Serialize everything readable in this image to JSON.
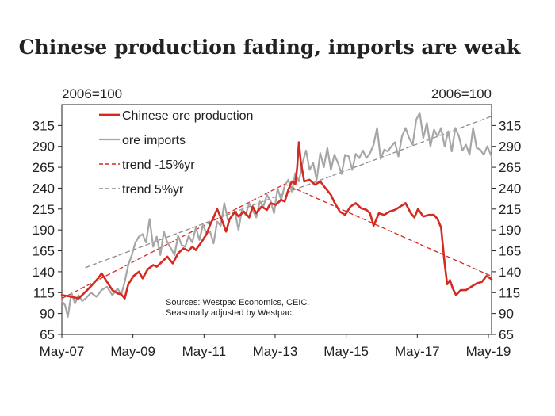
{
  "chart_data": {
    "type": "line",
    "title": "Chinese production fading, imports are weak",
    "left_axis_unit": "2006=100",
    "right_axis_unit": "2006=100",
    "ylim": [
      65,
      340
    ],
    "y_ticks": [
      65,
      90,
      115,
      140,
      165,
      190,
      215,
      240,
      265,
      290,
      315
    ],
    "xlim": [
      2007.33,
      2019.42
    ],
    "x_ticks": [
      {
        "label": "May-07",
        "value": 2007.33
      },
      {
        "label": "May-09",
        "value": 2009.33
      },
      {
        "label": "May-11",
        "value": 2011.33
      },
      {
        "label": "May-13",
        "value": 2013.33
      },
      {
        "label": "May-15",
        "value": 2015.33
      },
      {
        "label": "May-17",
        "value": 2017.33
      },
      {
        "label": "May-19",
        "value": 2019.33
      }
    ],
    "series": [
      {
        "name": "Chinese ore production",
        "color": "#d42a20",
        "style": "solid",
        "points": [
          [
            2007.33,
            112
          ],
          [
            2007.6,
            110
          ],
          [
            2007.8,
            108
          ],
          [
            2008.0,
            116
          ],
          [
            2008.2,
            125
          ],
          [
            2008.35,
            132
          ],
          [
            2008.45,
            138
          ],
          [
            2008.6,
            128
          ],
          [
            2008.75,
            118
          ],
          [
            2008.9,
            114
          ],
          [
            2009.0,
            113
          ],
          [
            2009.1,
            108
          ],
          [
            2009.2,
            125
          ],
          [
            2009.35,
            135
          ],
          [
            2009.5,
            140
          ],
          [
            2009.6,
            132
          ],
          [
            2009.75,
            143
          ],
          [
            2009.9,
            148
          ],
          [
            2010.0,
            146
          ],
          [
            2010.15,
            152
          ],
          [
            2010.3,
            158
          ],
          [
            2010.45,
            150
          ],
          [
            2010.6,
            162
          ],
          [
            2010.75,
            168
          ],
          [
            2010.9,
            165
          ],
          [
            2011.0,
            170
          ],
          [
            2011.1,
            166
          ],
          [
            2011.25,
            175
          ],
          [
            2011.4,
            185
          ],
          [
            2011.5,
            196
          ],
          [
            2011.6,
            205
          ],
          [
            2011.7,
            215
          ],
          [
            2011.85,
            200
          ],
          [
            2011.95,
            188
          ],
          [
            2012.05,
            203
          ],
          [
            2012.2,
            212
          ],
          [
            2012.3,
            206
          ],
          [
            2012.45,
            212
          ],
          [
            2012.6,
            205
          ],
          [
            2012.7,
            218
          ],
          [
            2012.8,
            210
          ],
          [
            2012.95,
            218
          ],
          [
            2013.1,
            214
          ],
          [
            2013.2,
            222
          ],
          [
            2013.35,
            220
          ],
          [
            2013.5,
            226
          ],
          [
            2013.6,
            224
          ],
          [
            2013.7,
            238
          ],
          [
            2013.8,
            248
          ],
          [
            2013.9,
            245
          ],
          [
            2013.95,
            265
          ],
          [
            2014.0,
            295
          ],
          [
            2014.05,
            272
          ],
          [
            2014.15,
            248
          ],
          [
            2014.3,
            250
          ],
          [
            2014.45,
            244
          ],
          [
            2014.6,
            248
          ],
          [
            2014.75,
            240
          ],
          [
            2014.9,
            232
          ],
          [
            2015.0,
            223
          ],
          [
            2015.15,
            212
          ],
          [
            2015.3,
            208
          ],
          [
            2015.45,
            218
          ],
          [
            2015.6,
            222
          ],
          [
            2015.75,
            216
          ],
          [
            2015.9,
            214
          ],
          [
            2016.0,
            210
          ],
          [
            2016.1,
            195
          ],
          [
            2016.25,
            210
          ],
          [
            2016.4,
            208
          ],
          [
            2016.55,
            212
          ],
          [
            2016.7,
            214
          ],
          [
            2016.85,
            218
          ],
          [
            2017.0,
            222
          ],
          [
            2017.15,
            210
          ],
          [
            2017.25,
            205
          ],
          [
            2017.35,
            215
          ],
          [
            2017.5,
            206
          ],
          [
            2017.65,
            208
          ],
          [
            2017.8,
            208
          ],
          [
            2017.9,
            203
          ],
          [
            2018.0,
            193
          ],
          [
            2018.1,
            150
          ],
          [
            2018.17,
            125
          ],
          [
            2018.25,
            130
          ],
          [
            2018.33,
            120
          ],
          [
            2018.42,
            112
          ],
          [
            2018.55,
            118
          ],
          [
            2018.7,
            118
          ],
          [
            2018.85,
            122
          ],
          [
            2019.0,
            126
          ],
          [
            2019.15,
            128
          ],
          [
            2019.28,
            135
          ],
          [
            2019.42,
            131
          ]
        ]
      },
      {
        "name": "ore imports",
        "color": "#a6a6a6",
        "style": "solid",
        "points": [
          [
            2007.33,
            105
          ],
          [
            2007.42,
            100
          ],
          [
            2007.5,
            86
          ],
          [
            2007.6,
            115
          ],
          [
            2007.7,
            102
          ],
          [
            2007.8,
            112
          ],
          [
            2007.9,
            105
          ],
          [
            2008.0,
            108
          ],
          [
            2008.15,
            115
          ],
          [
            2008.3,
            110
          ],
          [
            2008.45,
            118
          ],
          [
            2008.6,
            122
          ],
          [
            2008.75,
            112
          ],
          [
            2008.9,
            120
          ],
          [
            2009.0,
            112
          ],
          [
            2009.1,
            128
          ],
          [
            2009.2,
            148
          ],
          [
            2009.3,
            160
          ],
          [
            2009.4,
            175
          ],
          [
            2009.5,
            182
          ],
          [
            2009.6,
            185
          ],
          [
            2009.7,
            175
          ],
          [
            2009.8,
            203
          ],
          [
            2009.9,
            170
          ],
          [
            2010.0,
            182
          ],
          [
            2010.1,
            160
          ],
          [
            2010.2,
            188
          ],
          [
            2010.3,
            175
          ],
          [
            2010.4,
            168
          ],
          [
            2010.5,
            160
          ],
          [
            2010.6,
            183
          ],
          [
            2010.7,
            172
          ],
          [
            2010.8,
            170
          ],
          [
            2010.9,
            183
          ],
          [
            2011.0,
            175
          ],
          [
            2011.1,
            193
          ],
          [
            2011.2,
            178
          ],
          [
            2011.3,
            196
          ],
          [
            2011.4,
            186
          ],
          [
            2011.5,
            188
          ],
          [
            2011.6,
            174
          ],
          [
            2011.7,
            200
          ],
          [
            2011.8,
            195
          ],
          [
            2011.9,
            222
          ],
          [
            2012.0,
            202
          ],
          [
            2012.1,
            205
          ],
          [
            2012.2,
            212
          ],
          [
            2012.3,
            190
          ],
          [
            2012.4,
            215
          ],
          [
            2012.5,
            208
          ],
          [
            2012.6,
            222
          ],
          [
            2012.7,
            214
          ],
          [
            2012.8,
            205
          ],
          [
            2012.9,
            224
          ],
          [
            2013.0,
            218
          ],
          [
            2013.1,
            232
          ],
          [
            2013.2,
            225
          ],
          [
            2013.3,
            210
          ],
          [
            2013.4,
            240
          ],
          [
            2013.5,
            226
          ],
          [
            2013.6,
            243
          ],
          [
            2013.7,
            250
          ],
          [
            2013.8,
            236
          ],
          [
            2013.9,
            258
          ],
          [
            2014.0,
            248
          ],
          [
            2014.1,
            270
          ],
          [
            2014.2,
            285
          ],
          [
            2014.3,
            262
          ],
          [
            2014.4,
            270
          ],
          [
            2014.5,
            250
          ],
          [
            2014.6,
            282
          ],
          [
            2014.7,
            265
          ],
          [
            2014.8,
            288
          ],
          [
            2014.9,
            262
          ],
          [
            2015.0,
            280
          ],
          [
            2015.1,
            270
          ],
          [
            2015.2,
            257
          ],
          [
            2015.3,
            280
          ],
          [
            2015.4,
            278
          ],
          [
            2015.5,
            262
          ],
          [
            2015.6,
            281
          ],
          [
            2015.7,
            276
          ],
          [
            2015.8,
            285
          ],
          [
            2015.9,
            276
          ],
          [
            2016.0,
            282
          ],
          [
            2016.1,
            292
          ],
          [
            2016.2,
            312
          ],
          [
            2016.3,
            275
          ],
          [
            2016.4,
            286
          ],
          [
            2016.5,
            284
          ],
          [
            2016.6,
            290
          ],
          [
            2016.7,
            295
          ],
          [
            2016.8,
            278
          ],
          [
            2016.9,
            302
          ],
          [
            2017.0,
            312
          ],
          [
            2017.1,
            300
          ],
          [
            2017.2,
            292
          ],
          [
            2017.3,
            322
          ],
          [
            2017.4,
            330
          ],
          [
            2017.5,
            300
          ],
          [
            2017.6,
            318
          ],
          [
            2017.7,
            290
          ],
          [
            2017.8,
            310
          ],
          [
            2017.9,
            302
          ],
          [
            2018.0,
            312
          ],
          [
            2018.1,
            290
          ],
          [
            2018.2,
            308
          ],
          [
            2018.3,
            284
          ],
          [
            2018.4,
            312
          ],
          [
            2018.5,
            302
          ],
          [
            2018.6,
            285
          ],
          [
            2018.7,
            292
          ],
          [
            2018.8,
            280
          ],
          [
            2018.9,
            312
          ],
          [
            2019.0,
            288
          ],
          [
            2019.1,
            286
          ],
          [
            2019.2,
            280
          ],
          [
            2019.3,
            290
          ],
          [
            2019.42,
            278
          ]
        ]
      },
      {
        "name": "trend -15%yr",
        "color": "#d42a20",
        "style": "dashed",
        "points": [
          [
            2007.33,
            108
          ],
          [
            2013.6,
            245
          ],
          [
            2019.4,
            135
          ]
        ]
      },
      {
        "name": "trend 5%yr",
        "color": "#8c8c8c",
        "style": "dashed",
        "points": [
          [
            2008.0,
            145
          ],
          [
            2019.42,
            326
          ]
        ]
      }
    ],
    "legend_position": "top-left",
    "annotation": [
      "Sources: Westpac Economics, CEIC.",
      "Seasonally adjusted by Westpac."
    ]
  }
}
